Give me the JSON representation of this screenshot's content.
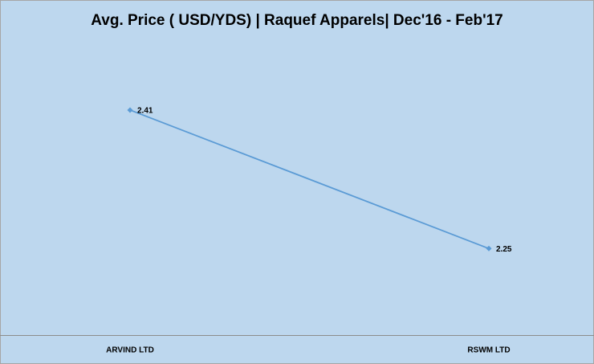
{
  "chart_data": {
    "type": "line",
    "title": "Avg. Price ( USD/YDS)  |  Raquef Apparels| Dec'16 - Feb'17",
    "categories": [
      "ARVIND LTD",
      "RSWM LTD"
    ],
    "values": [
      2.41,
      2.25
    ],
    "color": "#5b9bd5",
    "ylim": [
      2.15,
      2.5
    ]
  }
}
